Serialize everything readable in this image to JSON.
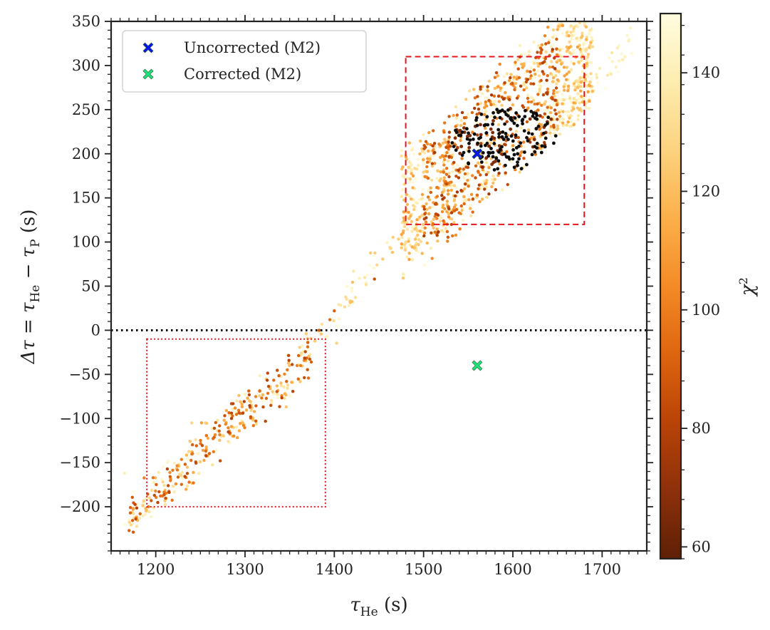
{
  "chart_data": {
    "type": "scatter",
    "xlabel": {
      "main": "τ",
      "sub": "He",
      "tail": " (s)"
    },
    "ylabel": {
      "lead": "Δτ = τ",
      "sub1": "He",
      "mid": " − τ",
      "sub2": "P",
      "tail": " (s)"
    },
    "xlim": [
      1150,
      1750
    ],
    "ylim": [
      -250,
      350
    ],
    "xticks": [
      1200,
      1300,
      1400,
      1500,
      1600,
      1700
    ],
    "yticks": [
      -200,
      -150,
      -100,
      -50,
      0,
      50,
      100,
      150,
      200,
      250,
      300,
      350
    ],
    "tick_labels": {
      "x": [
        "1200",
        "1300",
        "1400",
        "1500",
        "1600",
        "1700"
      ],
      "y": [
        "−200",
        "−150",
        "−100",
        "−50",
        "0",
        "50",
        "100",
        "150",
        "200",
        "250",
        "300",
        "350"
      ]
    },
    "colorbar": {
      "label": "χ²",
      "label_main": "χ",
      "label_sup": "2",
      "range": [
        58,
        150
      ],
      "ticks": [
        60,
        80,
        100,
        120,
        140
      ],
      "tick_labels": [
        "60",
        "80",
        "100",
        "120",
        "140"
      ],
      "colormap": "YlOrBr_r",
      "stops": [
        "#fffcdf",
        "#fdedb0",
        "#fdd27f",
        "#fbb04a",
        "#f48b26",
        "#de650f",
        "#b94307",
        "#8d300b",
        "#5e2005"
      ]
    },
    "series": [
      {
        "name": "Uncorrected (M2)",
        "marker": "X",
        "color": "#0a14f0",
        "points": [
          [
            1560,
            200
          ]
        ]
      },
      {
        "name": "Corrected (M2)",
        "marker": "X",
        "color": "#22e07a",
        "points": [
          [
            1560,
            -40
          ]
        ]
      }
    ],
    "hline": {
      "y": 0,
      "style": "dotted",
      "color": "#000000"
    },
    "boxes": [
      {
        "name": "upper-cluster-box",
        "x": [
          1480,
          1680
        ],
        "y": [
          120,
          310
        ],
        "style": "dashed",
        "color": "#e6141e"
      },
      {
        "name": "lower-cluster-box",
        "x": [
          1190,
          1390
        ],
        "y": [
          -200,
          -10
        ],
        "style": "dotted",
        "color": "#e6141e"
      }
    ],
    "clusters": [
      {
        "name": "upper",
        "x_range": [
          1460,
          1730
        ],
        "slope": 0.9,
        "center": [
          1580,
          210
        ],
        "count": 1350,
        "chi2_range": [
          58,
          150
        ]
      },
      {
        "name": "lower",
        "x_range": [
          1165,
          1400
        ],
        "slope": 0.95,
        "center": [
          1270,
          -110
        ],
        "count": 330,
        "chi2_range": [
          75,
          150
        ]
      }
    ],
    "legend": {
      "location": "upper left",
      "entries": [
        "Uncorrected (M2)",
        "Corrected (M2)"
      ]
    }
  }
}
